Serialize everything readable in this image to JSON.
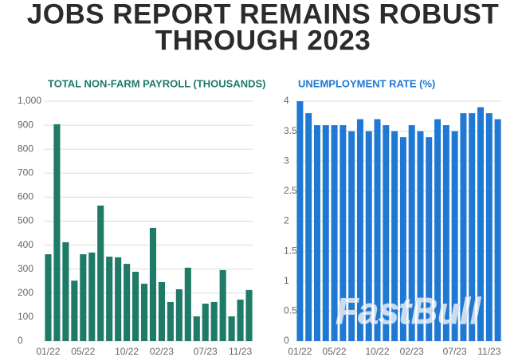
{
  "title": [
    "JOBS REPORT REMAINS ROBUST",
    "THROUGH 2023"
  ],
  "watermark": "FastBull",
  "chart_data": [
    {
      "type": "bar",
      "title": "TOTAL NON-FARM PAYROLL (THOUSANDS)",
      "color": "#1f7a68",
      "categories": [
        "01/22",
        null,
        null,
        null,
        "05/22",
        null,
        null,
        null,
        null,
        "10/22",
        null,
        null,
        null,
        "02/23",
        null,
        null,
        null,
        null,
        "07/23",
        null,
        null,
        null,
        "11/23",
        null
      ],
      "values": [
        362,
        904,
        412,
        252,
        362,
        369,
        565,
        352,
        349,
        322,
        289,
        239,
        472,
        246,
        163,
        216,
        306,
        103,
        156,
        163,
        296,
        103,
        173,
        213
      ],
      "ylim": [
        0,
        1000
      ],
      "yticks": [
        0,
        100,
        200,
        300,
        400,
        500,
        600,
        700,
        800,
        900,
        {
          "value": 1000,
          "label": "1,000"
        }
      ],
      "grid": true
    },
    {
      "type": "bar",
      "title": "UNEMPLOYMENT RATE (%)",
      "color": "#1e78d4",
      "categories": [
        "01/22",
        null,
        null,
        null,
        "05/22",
        null,
        null,
        null,
        null,
        "10/22",
        null,
        null,
        null,
        "02/23",
        null,
        null,
        null,
        null,
        "07/23",
        null,
        null,
        null,
        "11/23",
        null
      ],
      "values": [
        4.0,
        3.8,
        3.6,
        3.6,
        3.6,
        3.6,
        3.5,
        3.7,
        3.5,
        3.7,
        3.6,
        3.5,
        3.4,
        3.6,
        3.5,
        3.4,
        3.7,
        3.6,
        3.5,
        3.8,
        3.8,
        3.9,
        3.8,
        3.7
      ],
      "ylim": [
        0,
        4
      ],
      "yticks": [
        0,
        0.5,
        1,
        1.5,
        2,
        2.5,
        3,
        3.5,
        4
      ],
      "grid": true
    }
  ]
}
